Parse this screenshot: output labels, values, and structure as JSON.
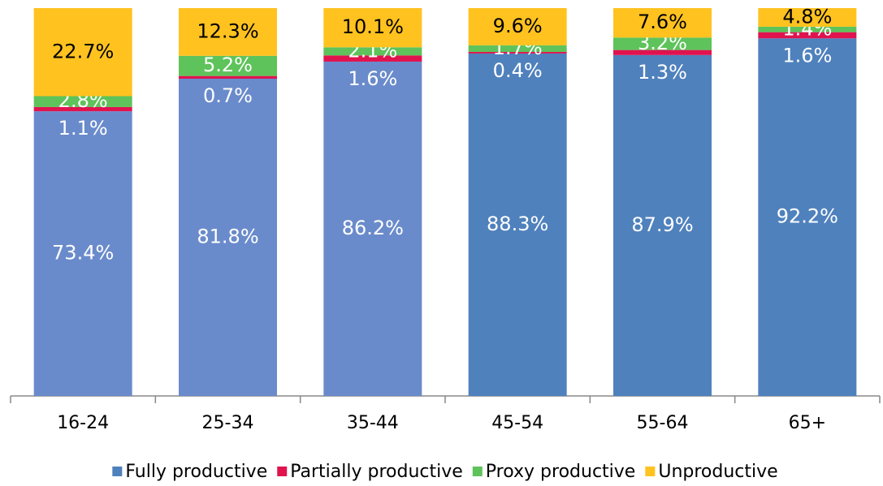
{
  "chart_data": {
    "type": "stacked_bar",
    "categories": [
      "16-24",
      "25-34",
      "35-44",
      "45-54",
      "55-64",
      "65+"
    ],
    "ylim": [
      0,
      100
    ],
    "series": [
      {
        "name": "Fully productive",
        "color": "#4f81bd",
        "colors": [
          "#6a8bcb",
          "#6a8bcb",
          "#6a8bcb",
          "#4f81bd",
          "#4f81bd",
          "#4f81bd"
        ],
        "values": [
          73.4,
          81.8,
          86.2,
          88.3,
          87.9,
          92.2
        ],
        "value_labels": [
          "73.4%",
          "81.8%",
          "86.2%",
          "88.3%",
          "87.9%",
          "92.2%"
        ],
        "label_color": "#ffffff"
      },
      {
        "name": "Partially productive",
        "color": "#e0134f",
        "values": [
          1.1,
          0.7,
          1.6,
          0.4,
          1.3,
          1.6
        ],
        "value_labels": [
          "1.1%",
          "0.7%",
          "1.6%",
          "0.4%",
          "1.3%",
          "1.6%"
        ],
        "label_color": "#ffffff"
      },
      {
        "name": "Proxy productive",
        "color": "#5ec35a",
        "values": [
          2.8,
          5.2,
          2.1,
          1.7,
          3.2,
          1.4
        ],
        "value_labels": [
          "2.8%",
          "5.2%",
          "2.1%",
          "1.7%",
          "3.2%",
          "1.4%"
        ],
        "label_color": "#ffffff"
      },
      {
        "name": "Unproductive",
        "color": "#ffc21f",
        "values": [
          22.7,
          12.3,
          10.1,
          9.6,
          7.6,
          4.8
        ],
        "value_labels": [
          "22.7%",
          "12.3%",
          "10.1%",
          "9.6%",
          "7.6%",
          "4.8%"
        ],
        "label_color": "#000000"
      }
    ]
  }
}
